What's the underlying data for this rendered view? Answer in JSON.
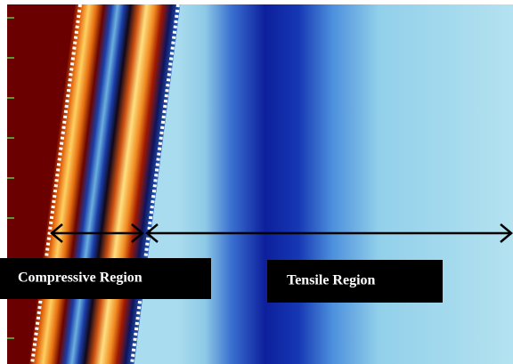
{
  "labels": {
    "compressive": "Compressive Region",
    "tensile": "Tensile Region"
  }
}
